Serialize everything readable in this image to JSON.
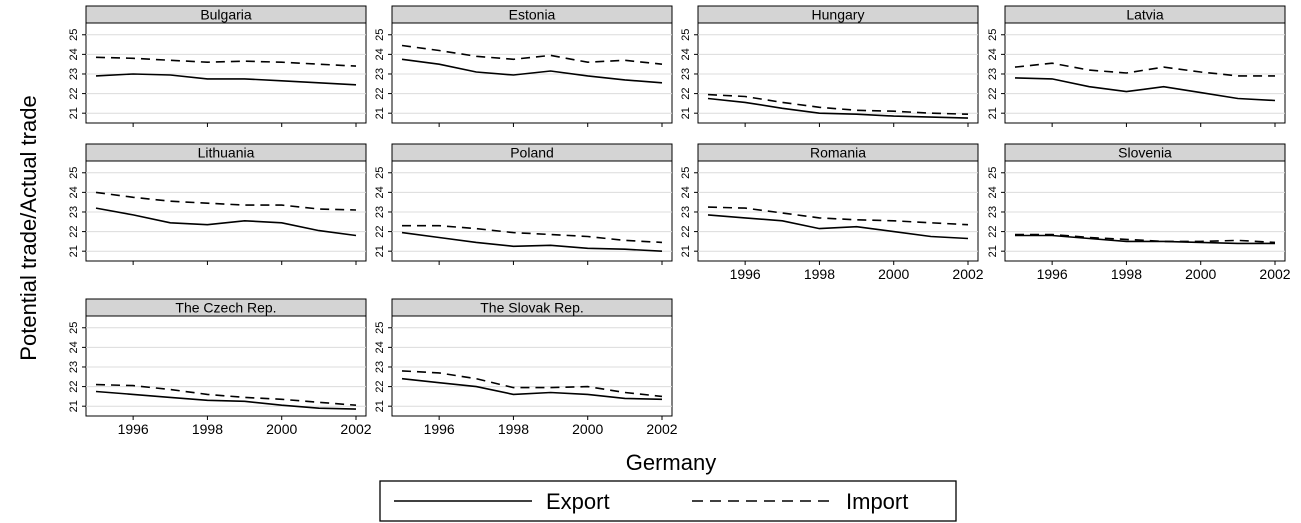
{
  "figure": {
    "xlabel": "Germany",
    "ylabel": "Potential trade/Actual trade"
  },
  "legend": {
    "placement": "bottom-center",
    "items": [
      {
        "key": "export",
        "label": "Export",
        "style": "solid"
      },
      {
        "key": "import",
        "label": "Import",
        "style": "dashed"
      }
    ]
  },
  "chart_data": {
    "type": "line",
    "layout": "small-multiples",
    "x": [
      1995,
      1996,
      1997,
      1998,
      1999,
      2000,
      2001,
      2002
    ],
    "xticks": [
      1996,
      1998,
      2000,
      2002
    ],
    "yticks": [
      21,
      22,
      23,
      24,
      25
    ],
    "ylim": [
      20.5,
      25.6
    ],
    "panels": [
      {
        "title": "Bulgaria",
        "series": [
          {
            "name": "Export",
            "values": [
              22.9,
              23.0,
              22.95,
              22.75,
              22.75,
              22.65,
              22.55,
              22.45
            ]
          },
          {
            "name": "Import",
            "values": [
              23.85,
              23.8,
              23.7,
              23.6,
              23.65,
              23.6,
              23.5,
              23.4
            ]
          }
        ]
      },
      {
        "title": "Estonia",
        "series": [
          {
            "name": "Export",
            "values": [
              23.75,
              23.5,
              23.1,
              22.95,
              23.15,
              22.9,
              22.7,
              22.55
            ]
          },
          {
            "name": "Import",
            "values": [
              24.45,
              24.2,
              23.9,
              23.75,
              23.95,
              23.6,
              23.7,
              23.5
            ]
          }
        ]
      },
      {
        "title": "Hungary",
        "series": [
          {
            "name": "Export",
            "values": [
              21.75,
              21.55,
              21.25,
              21.0,
              20.95,
              20.85,
              20.8,
              20.75
            ]
          },
          {
            "name": "Import",
            "values": [
              21.95,
              21.85,
              21.55,
              21.3,
              21.15,
              21.1,
              21.0,
              20.95
            ]
          }
        ]
      },
      {
        "title": "Latvia",
        "series": [
          {
            "name": "Export",
            "values": [
              22.8,
              22.75,
              22.35,
              22.1,
              22.35,
              22.05,
              21.75,
              21.65
            ]
          },
          {
            "name": "Import",
            "values": [
              23.35,
              23.55,
              23.2,
              23.05,
              23.35,
              23.1,
              22.9,
              22.9
            ]
          }
        ]
      },
      {
        "title": "Lithuania",
        "series": [
          {
            "name": "Export",
            "values": [
              23.2,
              22.85,
              22.45,
              22.35,
              22.55,
              22.45,
              22.05,
              21.8
            ]
          },
          {
            "name": "Import",
            "values": [
              24.0,
              23.75,
              23.55,
              23.45,
              23.35,
              23.35,
              23.15,
              23.1
            ]
          }
        ]
      },
      {
        "title": "Poland",
        "series": [
          {
            "name": "Export",
            "values": [
              21.95,
              21.7,
              21.45,
              21.25,
              21.3,
              21.15,
              21.1,
              21.0
            ]
          },
          {
            "name": "Import",
            "values": [
              22.3,
              22.3,
              22.15,
              21.95,
              21.85,
              21.75,
              21.55,
              21.45
            ]
          }
        ]
      },
      {
        "title": "Romania",
        "series": [
          {
            "name": "Export",
            "values": [
              22.85,
              22.7,
              22.55,
              22.15,
              22.25,
              22.0,
              21.75,
              21.65
            ]
          },
          {
            "name": "Import",
            "values": [
              23.25,
              23.2,
              22.95,
              22.7,
              22.6,
              22.55,
              22.45,
              22.35
            ]
          }
        ]
      },
      {
        "title": "Slovenia",
        "series": [
          {
            "name": "Export",
            "values": [
              21.8,
              21.8,
              21.65,
              21.5,
              21.5,
              21.45,
              21.4,
              21.4
            ]
          },
          {
            "name": "Import",
            "values": [
              21.85,
              21.85,
              21.7,
              21.6,
              21.5,
              21.5,
              21.55,
              21.45
            ]
          }
        ]
      },
      {
        "title": "The Czech Rep.",
        "series": [
          {
            "name": "Export",
            "values": [
              21.75,
              21.6,
              21.45,
              21.3,
              21.25,
              21.05,
              20.9,
              20.85
            ]
          },
          {
            "name": "Import",
            "values": [
              22.1,
              22.05,
              21.85,
              21.6,
              21.45,
              21.35,
              21.2,
              21.05
            ]
          }
        ]
      },
      {
        "title": "The Slovak Rep.",
        "series": [
          {
            "name": "Export",
            "values": [
              22.4,
              22.2,
              22.0,
              21.6,
              21.7,
              21.6,
              21.4,
              21.35
            ]
          },
          {
            "name": "Import",
            "values": [
              22.8,
              22.7,
              22.4,
              21.95,
              21.95,
              22.0,
              21.7,
              21.5
            ]
          }
        ]
      }
    ]
  }
}
